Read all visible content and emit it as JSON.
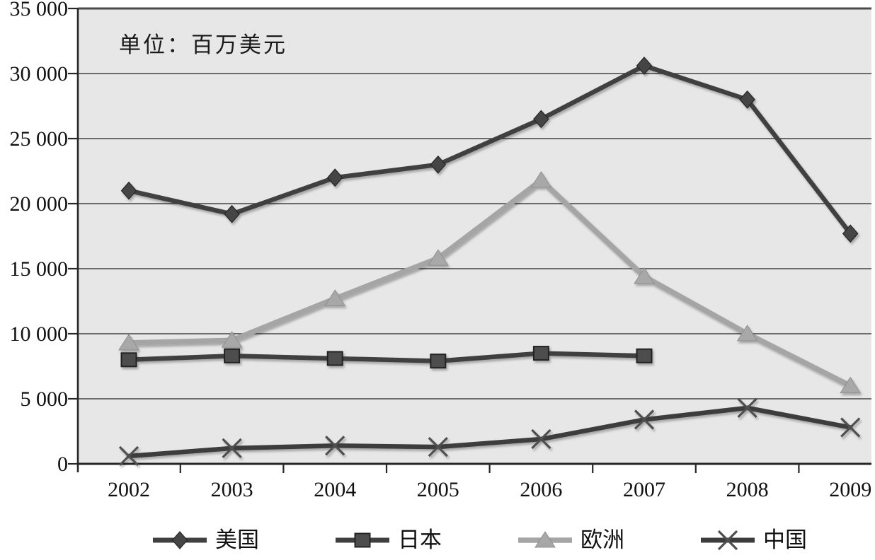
{
  "chart_data": {
    "type": "line",
    "title": "",
    "xlabel": "",
    "ylabel": "",
    "unit_label": "单位：百万美元",
    "categories": [
      "2002",
      "2003",
      "2004",
      "2005",
      "2006",
      "2007",
      "2008",
      "2009"
    ],
    "series": [
      {
        "key": "us",
        "name": "美国",
        "marker": "diamond",
        "color": "#404040",
        "marker_color": "#454545",
        "values": [
          21000,
          19200,
          22000,
          23000,
          26500,
          30600,
          28000,
          17700
        ]
      },
      {
        "key": "japan",
        "name": "日本",
        "marker": "square",
        "color": "#3f3f3f",
        "marker_color": "#4d4d4d",
        "values": [
          8000,
          8300,
          8100,
          7900,
          8500,
          8300,
          null,
          null
        ]
      },
      {
        "key": "europe",
        "name": "欧洲",
        "marker": "triangle",
        "color": "#a5a5a5",
        "marker_color": "#a8a8a8",
        "values": [
          9300,
          9500,
          12700,
          15800,
          21800,
          14400,
          10000,
          6000
        ]
      },
      {
        "key": "china",
        "name": "中国",
        "marker": "x",
        "color": "#3c3c3c",
        "marker_color": "#4f4f4f",
        "values": [
          600,
          1200,
          1400,
          1300,
          1900,
          3400,
          4300,
          2800
        ]
      }
    ],
    "ylim": [
      0,
      35000
    ],
    "y_tick_step": 5000,
    "y_tick_labels": [
      "0",
      "5 000",
      "10 000",
      "15 000",
      "20 000",
      "25 000",
      "30 000",
      "35 000"
    ],
    "grid": "horizontal",
    "legend_position": "bottom",
    "plot_bg_color": "#e7e7e7",
    "gridline_color": "#5a5a5a",
    "axis_color": "#262626",
    "text_color": "#111111"
  }
}
